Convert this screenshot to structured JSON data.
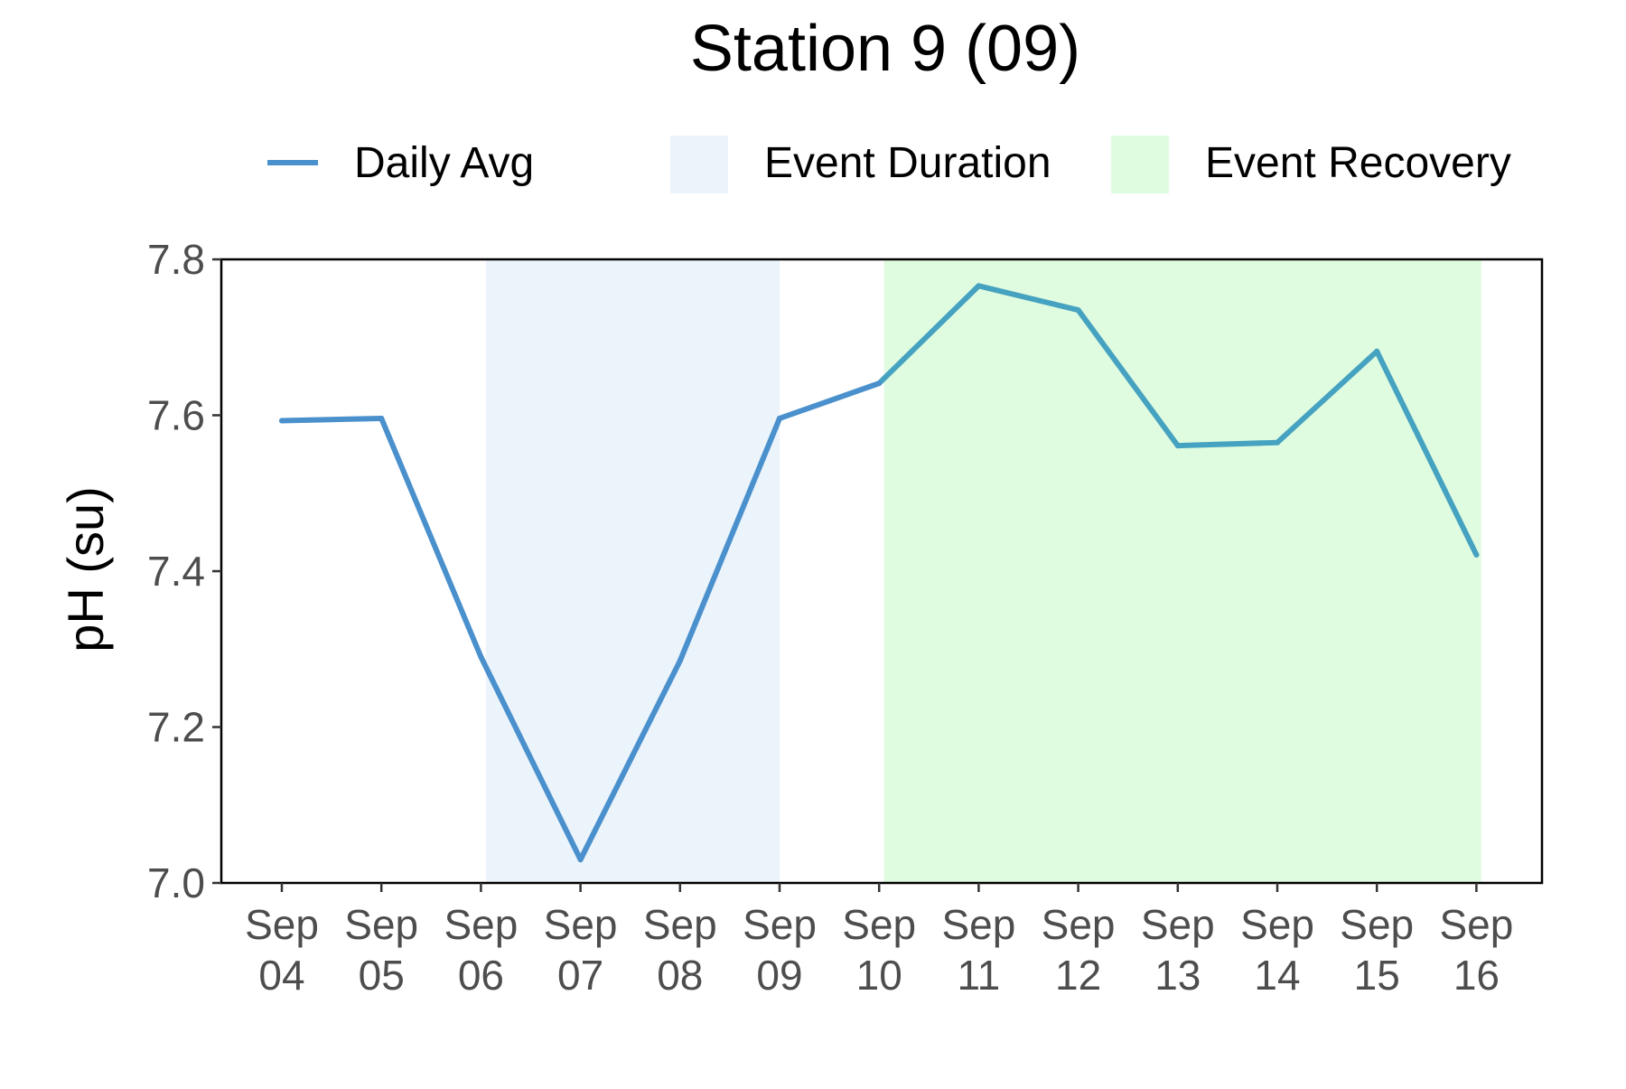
{
  "chart_data": {
    "type": "line",
    "title": "Station 9 (09)",
    "xlabel": "",
    "ylabel": "pH (su)",
    "ylim": [
      7.0,
      7.8
    ],
    "yticks": [
      "7.0",
      "7.2",
      "7.4",
      "7.6",
      "7.8"
    ],
    "grid": false,
    "legend_position": "top",
    "x": [
      "Sep 04",
      "Sep 05",
      "Sep 06",
      "Sep 07",
      "Sep 08",
      "Sep 09",
      "Sep 10",
      "Sep 11",
      "Sep 12",
      "Sep 13",
      "Sep 14",
      "Sep 15",
      "Sep 16"
    ],
    "x_tick_labels": [
      [
        "Sep",
        "04"
      ],
      [
        "Sep",
        "05"
      ],
      [
        "Sep",
        "06"
      ],
      [
        "Sep",
        "07"
      ],
      [
        "Sep",
        "08"
      ],
      [
        "Sep",
        "09"
      ],
      [
        "Sep",
        "10"
      ],
      [
        "Sep",
        "11"
      ],
      [
        "Sep",
        "12"
      ],
      [
        "Sep",
        "13"
      ],
      [
        "Sep",
        "14"
      ],
      [
        "Sep",
        "15"
      ],
      [
        "Sep",
        "16"
      ]
    ],
    "series": [
      {
        "name": "Daily Avg",
        "color": "#4a90cc",
        "recovery_color": "#45a2c0",
        "values": [
          7.593,
          7.596,
          7.29,
          7.03,
          7.285,
          7.596,
          7.641,
          7.766,
          7.735,
          7.561,
          7.565,
          7.682,
          7.421
        ]
      }
    ],
    "bands": [
      {
        "name": "Event Duration",
        "color": "#ebf3fb",
        "start": "Sep 06",
        "end": "Sep 09",
        "start_offset_days": 0.05,
        "end_offset_days": 0.0
      },
      {
        "name": "Event Recovery",
        "color": "#e0fce0",
        "start": "Sep 10",
        "end": "Sep 16",
        "start_offset_days": 0.05,
        "end_offset_days": 0.05
      }
    ],
    "legend": [
      {
        "label": "Daily Avg",
        "kind": "line",
        "color": "#4a90cc"
      },
      {
        "label": "Event Duration",
        "kind": "fill",
        "color": "#ebf3fb"
      },
      {
        "label": "Event Recovery",
        "kind": "fill",
        "color": "#e0fce0"
      }
    ]
  }
}
